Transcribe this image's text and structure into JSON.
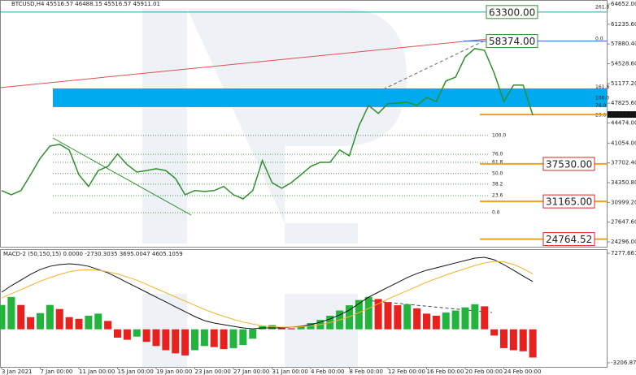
{
  "chart_data": [
    {
      "type": "line",
      "title": "BTCUSD,H4  45516.57 46488.15 45516.57 45911.01",
      "categories": [
        "3 Jan 2021",
        null,
        null,
        null,
        "7 Jan 00:00",
        null,
        null,
        null,
        "11 Jan 00:00",
        null,
        null,
        null,
        "15 Jan 00:00",
        null,
        null,
        null,
        "19 Jan 00:00",
        null,
        null,
        null,
        "23 Jan 00:00",
        null,
        null,
        null,
        "27 Jan 00:00",
        null,
        null,
        null,
        "31 Jan 00:00",
        null,
        null,
        null,
        "4 Feb 00:00",
        null,
        null,
        null,
        "8 Feb 00:00",
        null,
        null,
        null,
        "12 Feb 00:00",
        null,
        null,
        null,
        "16 Feb 00:00",
        null,
        null,
        null,
        "20 Feb 00:00",
        null,
        null,
        null,
        "24 Feb 00:00",
        null,
        null,
        null
      ],
      "series": [
        {
          "color": "#2f8f2f",
          "values": [
            33000,
            32300,
            33000,
            35700,
            38500,
            40550,
            40850,
            39900,
            35700,
            33700,
            36400,
            37100,
            39200,
            37400,
            36150,
            36400,
            36700,
            36400,
            35050,
            32300,
            33000,
            32850,
            33000,
            33700,
            32300,
            31600,
            33000,
            38100,
            34350,
            33400,
            34350,
            35700,
            37100,
            37800,
            37800,
            39900,
            38900,
            44000,
            47450,
            46100,
            47750,
            47850,
            48000,
            47450,
            48800,
            48100,
            51600,
            52250,
            55700,
            57100,
            56800,
            52950,
            48100,
            50900,
            50900,
            45800
          ]
        }
      ],
      "ylim": [
        24296,
        64652
      ],
      "yticks": [
        {
          "value": 64652,
          "label": "64652.00"
        },
        {
          "value": 61235.6,
          "label": "61235.60"
        },
        {
          "value": 57880.4,
          "label": "57880.40"
        },
        {
          "value": 54528.6,
          "label": "54528.60"
        },
        {
          "value": 51177.2,
          "label": "51177.20"
        },
        {
          "value": 47825.6,
          "label": "47825.60"
        },
        {
          "value": 44474,
          "label": "44474.00"
        },
        {
          "value": 41054,
          "label": "41054.00"
        },
        {
          "value": 37702.4,
          "label": "37702.40"
        },
        {
          "value": 34350.8,
          "label": "34350.80"
        },
        {
          "value": 30999.2,
          "label": "30999.20"
        },
        {
          "value": 27647.6,
          "label": "27647.60"
        },
        {
          "value": 24296,
          "label": "24296.00"
        }
      ],
      "levels": [
        {
          "value": 63300,
          "label": "63300.00",
          "color": "#2f8f2f"
        },
        {
          "value": 58374,
          "label": "58374.00",
          "color": "#2f8f2f"
        },
        {
          "value": 37530,
          "label": "37530.00",
          "color": "#e02020"
        },
        {
          "value": 31165,
          "label": "31165.00",
          "color": "#e02020"
        },
        {
          "value": 24764.52,
          "label": "24764.52",
          "color": "#e02020"
        }
      ],
      "current": {
        "value": 45911.01,
        "label": "45911.01"
      },
      "zone": [
        47170,
        50330
      ],
      "fib_right": [
        {
          "value": 64100,
          "label": "261.8"
        },
        {
          "value": 58700,
          "label": "0.0"
        },
        {
          "value": 50500,
          "label": "161.8"
        },
        {
          "value": 48700,
          "label": "100.0"
        },
        {
          "value": 47400,
          "label": "76.0"
        },
        {
          "value": 45750,
          "label": "23.6"
        }
      ],
      "fib_left": [
        {
          "value": 42350,
          "label": "100.0"
        },
        {
          "value": 39150,
          "label": "76.0"
        },
        {
          "value": 37800,
          "label": "61.8"
        },
        {
          "value": 35900,
          "label": "50.0"
        },
        {
          "value": 34100,
          "label": "38.2"
        },
        {
          "value": 32150,
          "label": "23.6"
        },
        {
          "value": 29250,
          "label": "0.0"
        }
      ]
    },
    {
      "type": "bar",
      "title": "MACD-2 (50,150,15) 0.0000 -2730.3035 3695.0047 4605.1059",
      "ylim": [
        -3206.8732,
        7277.6614
      ],
      "yticks": [
        7277.6614,
        -3206.8732
      ],
      "colors": [
        "#22b43c",
        "#e8201e"
      ],
      "values": [
        2330,
        3100,
        2330,
        1165,
        1550,
        2330,
        1940,
        1165,
        1000,
        1300,
        1500,
        800,
        -800,
        -1000,
        -700,
        -1200,
        -1600,
        -2000,
        -2300,
        -2500,
        -2000,
        -1600,
        -1700,
        -1900,
        -1800,
        -1500,
        -900,
        300,
        400,
        200,
        100,
        300,
        600,
        900,
        1300,
        1800,
        2300,
        2800,
        3100,
        2900,
        2600,
        2300,
        2400,
        2000,
        1500,
        1300,
        1600,
        1800,
        2100,
        2400,
        2200,
        -600,
        -1800,
        -2000,
        -2100,
        -2700
      ],
      "lines": [
        {
          "color": "#111111",
          "values": [
            3550,
            4170,
            4710,
            5260,
            5720,
            6030,
            6190,
            6270,
            6190,
            6030,
            5720,
            5410,
            4950,
            4480,
            4020,
            3550,
            3080,
            2620,
            2150,
            1690,
            1220,
            830,
            600,
            440,
            290,
            130,
            50,
            130,
            130,
            130,
            210,
            290,
            440,
            680,
            990,
            1380,
            1840,
            2460,
            3080,
            3550,
            4020,
            4480,
            4950,
            5340,
            5650,
            5880,
            6110,
            6350,
            6580,
            6810,
            6890,
            6660,
            6190,
            5650,
            5100,
            4560
          ]
        },
        {
          "color": "#f0b429",
          "values": [
            3000,
            3400,
            3800,
            4200,
            4600,
            4950,
            5250,
            5500,
            5650,
            5700,
            5650,
            5500,
            5300,
            5000,
            4700,
            4300,
            3900,
            3500,
            3100,
            2700,
            2300,
            1900,
            1550,
            1250,
            950,
            700,
            500,
            350,
            250,
            200,
            200,
            250,
            330,
            450,
            650,
            900,
            1200,
            1600,
            2000,
            2450,
            2900,
            3300,
            3700,
            4100,
            4500,
            4850,
            5200,
            5500,
            5800,
            6100,
            6350,
            6500,
            6450,
            6200,
            5800,
            5300
          ]
        }
      ]
    }
  ]
}
